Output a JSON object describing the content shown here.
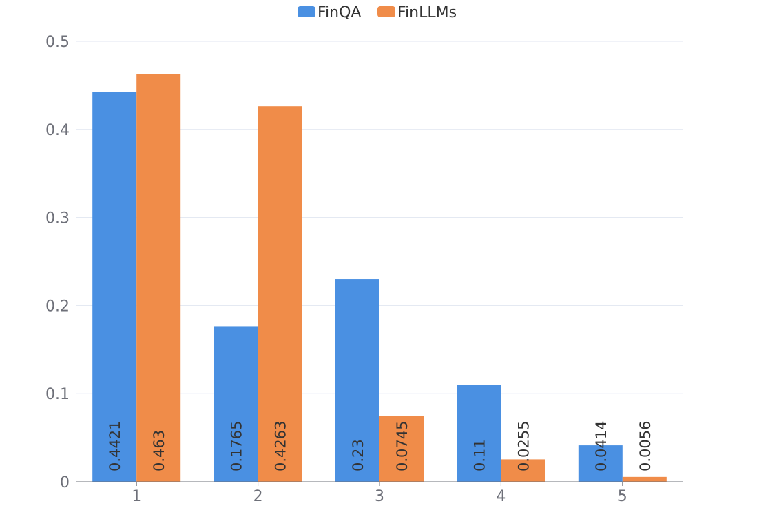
{
  "chart_data": {
    "type": "bar",
    "categories": [
      "1",
      "2",
      "3",
      "4",
      "5"
    ],
    "series": [
      {
        "name": "FinQA",
        "values": [
          0.4421,
          0.1765,
          0.23,
          0.11,
          0.0414
        ],
        "color": "#4a90e2"
      },
      {
        "name": "FinLLMs",
        "values": [
          0.463,
          0.4263,
          0.0745,
          0.0255,
          0.0056
        ],
        "color": "#f08c49"
      }
    ],
    "ylim": [
      0,
      0.5
    ],
    "yticks": [
      "0",
      "0.1",
      "0.2",
      "0.3",
      "0.4",
      "0.5"
    ],
    "grid": true,
    "legend_position": "top-center",
    "axis_color": "#6e7079",
    "grid_color": "#e0e6f1"
  }
}
